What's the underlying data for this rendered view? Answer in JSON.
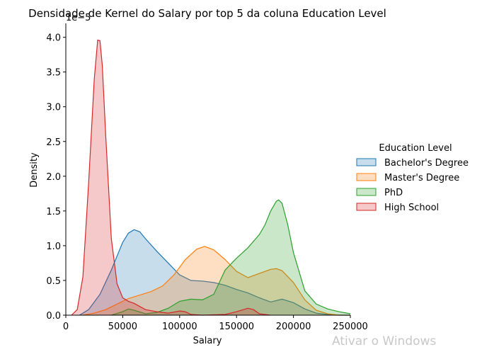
{
  "chart_data": {
    "type": "area",
    "title": "Densidade de Kernel do Salary por top 5 da coluna Education Level",
    "xlabel": "Salary",
    "ylabel": "Density",
    "offset_text": "1e−5",
    "xlim": [
      0,
      250000
    ],
    "ylim": [
      0,
      4.2
    ],
    "xticks": [
      0,
      50000,
      100000,
      150000,
      200000,
      250000
    ],
    "yticks": [
      0.0,
      0.5,
      1.0,
      1.5,
      2.0,
      2.5,
      3.0,
      3.5,
      4.0
    ],
    "grid": false,
    "legend_title": "Education Level",
    "legend_position": "right",
    "series": [
      {
        "name": "Bachelor's Degree",
        "color": "#1f77b4",
        "x": [
          12000,
          20000,
          30000,
          40000,
          50000,
          55000,
          60000,
          65000,
          70000,
          80000,
          90000,
          100000,
          110000,
          120000,
          130000,
          140000,
          150000,
          160000,
          170000,
          180000,
          190000,
          200000,
          210000,
          220000,
          230000,
          240000,
          250000
        ],
        "y": [
          0.0,
          0.08,
          0.3,
          0.65,
          1.05,
          1.18,
          1.23,
          1.2,
          1.1,
          0.92,
          0.75,
          0.58,
          0.5,
          0.49,
          0.47,
          0.43,
          0.37,
          0.32,
          0.25,
          0.19,
          0.23,
          0.18,
          0.09,
          0.03,
          0.01,
          0.0,
          0.0
        ]
      },
      {
        "name": "Master's Degree",
        "color": "#ff7f0e",
        "x": [
          15000,
          25000,
          35000,
          45000,
          55000,
          65000,
          75000,
          85000,
          95000,
          105000,
          115000,
          122000,
          130000,
          140000,
          150000,
          160000,
          170000,
          180000,
          185000,
          190000,
          200000,
          210000,
          220000,
          230000,
          240000,
          250000
        ],
        "y": [
          0.0,
          0.03,
          0.08,
          0.16,
          0.24,
          0.29,
          0.34,
          0.42,
          0.58,
          0.8,
          0.95,
          0.99,
          0.94,
          0.8,
          0.63,
          0.54,
          0.6,
          0.66,
          0.67,
          0.64,
          0.47,
          0.22,
          0.07,
          0.02,
          0.0,
          0.0
        ]
      },
      {
        "name": "PhD",
        "color": "#2ca02c",
        "x": [
          40000,
          50000,
          55000,
          60000,
          70000,
          80000,
          90000,
          100000,
          110000,
          120000,
          130000,
          140000,
          150000,
          160000,
          170000,
          175000,
          180000,
          185000,
          187000,
          190000,
          195000,
          200000,
          210000,
          220000,
          230000,
          240000,
          250000
        ],
        "y": [
          0.0,
          0.05,
          0.09,
          0.07,
          0.02,
          0.04,
          0.1,
          0.2,
          0.23,
          0.22,
          0.3,
          0.65,
          0.82,
          0.97,
          1.16,
          1.3,
          1.5,
          1.64,
          1.66,
          1.61,
          1.3,
          0.9,
          0.35,
          0.16,
          0.09,
          0.05,
          0.02
        ]
      },
      {
        "name": "High School",
        "color": "#d62728",
        "x": [
          5000,
          10000,
          15000,
          20000,
          25000,
          28000,
          30000,
          32000,
          35000,
          40000,
          45000,
          50000,
          55000,
          60000,
          70000,
          80000,
          90000,
          100000,
          105000,
          110000,
          120000,
          140000,
          150000,
          160000,
          165000,
          170000,
          180000
        ],
        "y": [
          0.0,
          0.08,
          0.55,
          1.9,
          3.4,
          3.96,
          3.95,
          3.6,
          2.6,
          1.1,
          0.45,
          0.25,
          0.2,
          0.17,
          0.08,
          0.05,
          0.03,
          0.06,
          0.05,
          0.01,
          0.0,
          0.01,
          0.05,
          0.1,
          0.08,
          0.02,
          0.0
        ]
      }
    ]
  },
  "watermark": "Ativar o Windows"
}
